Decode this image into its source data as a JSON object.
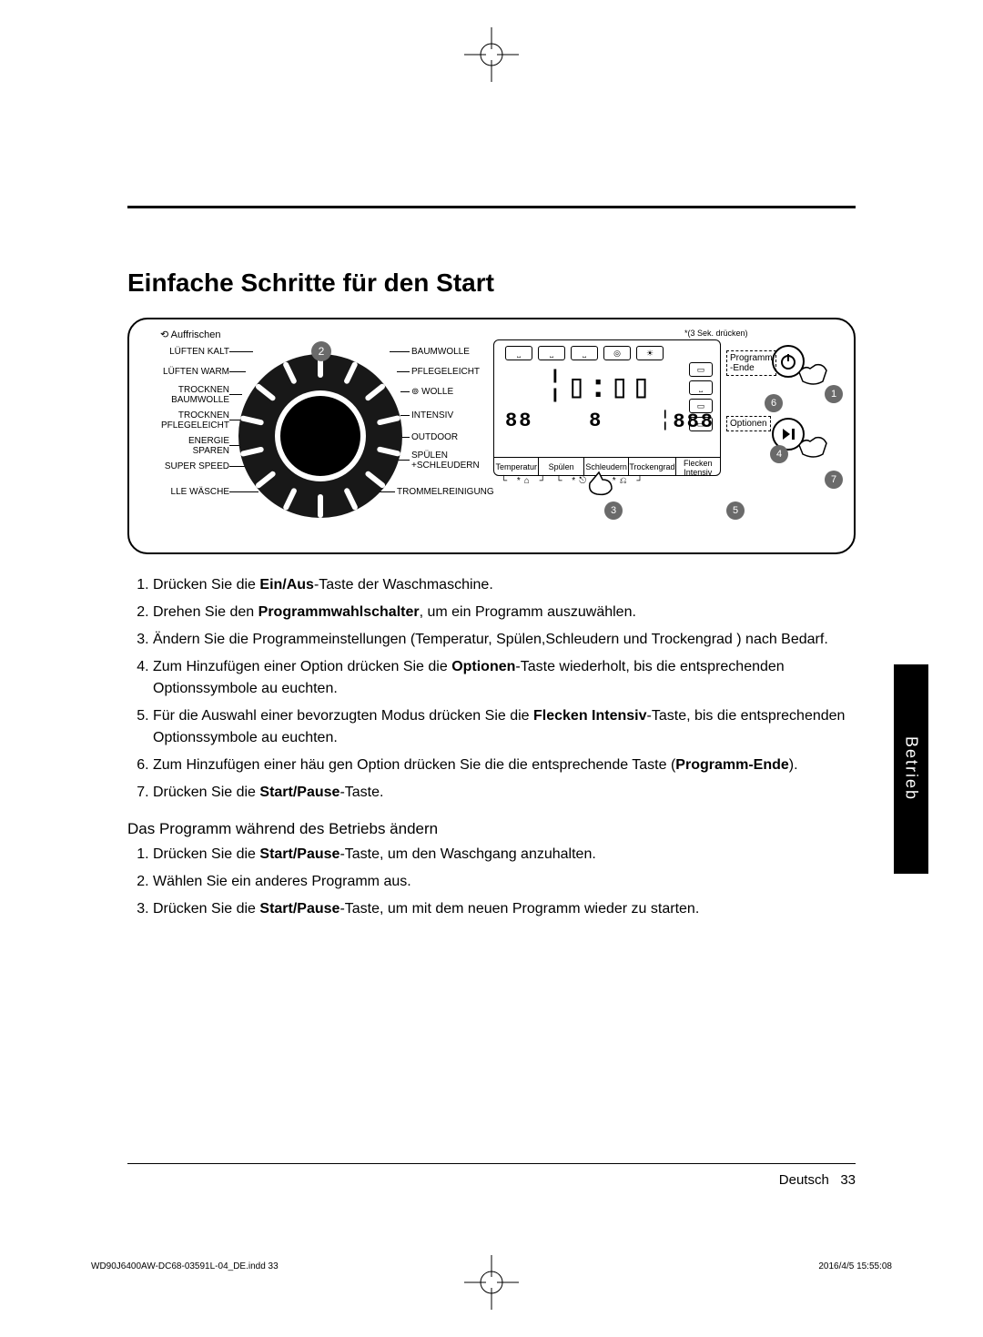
{
  "heading": "Einfache Schritte für den Start",
  "dial": {
    "top_label": "⟲ Auffrischen",
    "left": [
      "LÜFTEN KALT",
      "LÜFTEN WARM",
      "TROCKNEN\nBAUMWOLLE",
      "TROCKNEN\nPFLEGELEICHT",
      "ENERGIE\nSPAREN",
      "SUPER SPEED",
      "LLE WÄSCHE"
    ],
    "right": [
      "BAUMWOLLE",
      "PFLEGELEICHT",
      "⊚ WOLLE",
      "INTENSIV",
      "OUTDOOR",
      "SPÜLEN\n+SCHLEUDERN",
      "TROMMELREINIGUNG"
    ],
    "badge2": "2"
  },
  "display": {
    "note": "*(3 Sek. drücken)",
    "top_icons": [
      "⎵",
      "⎵",
      "⎵",
      "◎",
      "☀"
    ],
    "seg_big": "╎▯:▯▯",
    "seg_row2": [
      "88",
      "8",
      "╎888"
    ],
    "side_icons": [
      "▭",
      "⎵",
      "▭",
      "▭"
    ],
    "bottom": [
      "Temperatur",
      "Spülen",
      "Schleudern",
      "Trockengrad",
      "Flecken\nIntensiv"
    ],
    "box_prog_ende": "Programm\n-Ende",
    "box_optionen": "Optionen",
    "under": "└ *⌂ ┘   └ *⎋ ┘   *⎌ ┘"
  },
  "badges": {
    "b1": "1",
    "b3": "3",
    "b4": "4",
    "b5": "5",
    "b6": "6",
    "b7": "7"
  },
  "steps": [
    {
      "n": "1.",
      "t": "Drücken Sie die <b>Ein/Aus</b>-Taste der Waschmaschine."
    },
    {
      "n": "2.",
      "t": "Drehen Sie den <b>Programmwahlschalter</b>, um ein Programm auszuwählen."
    },
    {
      "n": "3.",
      "t": "Ändern Sie die Programmeinstellungen (Temperatur, Spülen,Schleudern und Trockengrad ) nach Bedarf."
    },
    {
      "n": "4.",
      "t": "Zum Hinzufügen einer Option drücken Sie die <b>Optionen</b>-Taste wiederholt, bis die entsprechenden Optionssymbole au euchten."
    },
    {
      "n": "5.",
      "t": "Für die Auswahl einer bevorzugten Modus drücken Sie die <b>Flecken Intensiv</b>-Taste, bis die entsprechenden Optionssymbole au euchten."
    },
    {
      "n": "6.",
      "t": "Zum Hinzufügen einer häu gen Option drücken Sie die die entsprechende Taste (<b>Programm-Ende</b>)."
    },
    {
      "n": "7.",
      "t": "Drücken Sie die <b>Start/Pause</b>-Taste."
    }
  ],
  "subheading": "Das Programm während des Betriebs ändern",
  "steps2": [
    {
      "n": "1.",
      "t": "Drücken Sie die <b>Start/Pause</b>-Taste, um den Waschgang anzuhalten."
    },
    {
      "n": "2.",
      "t": "Wählen Sie ein anderes Programm aus."
    },
    {
      "n": "3.",
      "t": "Drücken Sie die <b>Start/Pause</b>-Taste, um mit dem neuen Programm wieder zu starten."
    }
  ],
  "side_tab": "Betrieb",
  "footer": {
    "lang": "Deutsch",
    "page": "33"
  },
  "print": {
    "left": "WD90J6400AW-DC68-03591L-04_DE.indd   33",
    "right": "2016/4/5   15:55:08"
  },
  "colors": {
    "badge": "#6a6a6a"
  }
}
